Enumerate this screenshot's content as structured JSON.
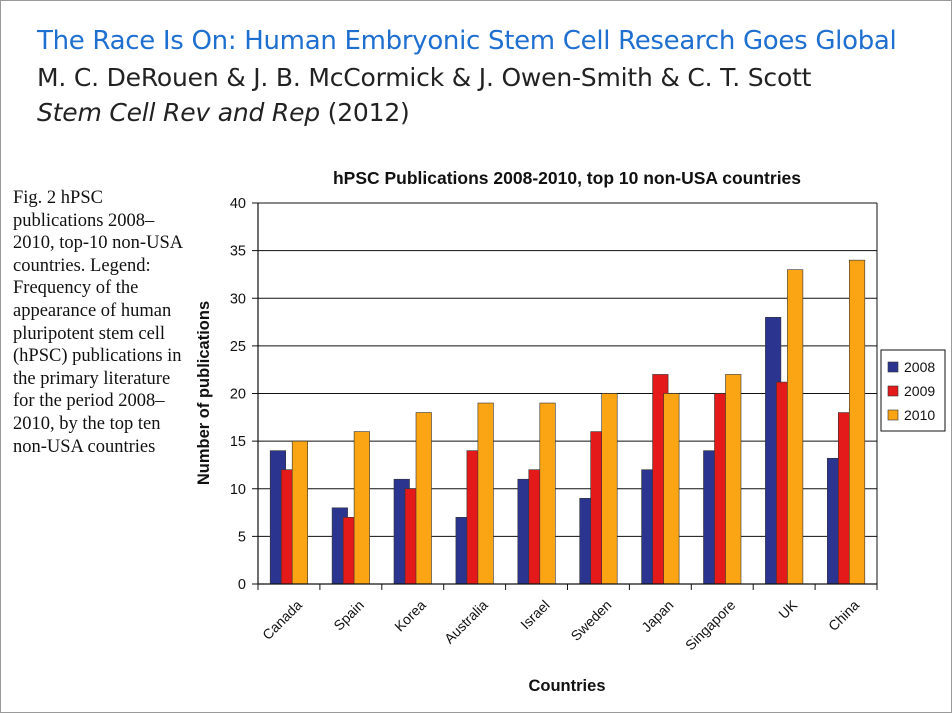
{
  "slide": {
    "title": "The Race Is On: Human Embryonic Stem Cell Research Goes Global",
    "authors": "M. C. DeRouen & J. B. McCormick & J. Owen-Smith & C. T. Scott",
    "journal": "Stem Cell Rev and Rep",
    "year": "(2012)"
  },
  "caption": "Fig. 2 hPSC publications 2008–2010, top-10 non-USA countries. Legend: Frequency of the appearance of human pluripotent stem cell (hPSC) publications in the primary literature for the period 2008–2010, by the top ten non-USA countries",
  "chart_data": {
    "type": "bar",
    "title": "hPSC Publications 2008-2010, top 10 non-USA countries",
    "xlabel": "Countries",
    "ylabel": "Number of publications",
    "ylim": [
      0,
      40
    ],
    "yticks": [
      0,
      5,
      10,
      15,
      20,
      25,
      30,
      35,
      40
    ],
    "grid": true,
    "legend_position": "right",
    "categories": [
      "Canada",
      "Spain",
      "Korea",
      "Australia",
      "Israel",
      "Sweden",
      "Japan",
      "Singapore",
      "UK",
      "China"
    ],
    "series": [
      {
        "name": "2008",
        "color": "#2b3590",
        "values": [
          14,
          8,
          11,
          7,
          11,
          9,
          12,
          14,
          28,
          13.2
        ]
      },
      {
        "name": "2009",
        "color": "#e3191a",
        "values": [
          12,
          7,
          10,
          14,
          12,
          16,
          22,
          20,
          21.2,
          18
        ]
      },
      {
        "name": "2010",
        "color": "#fba414",
        "values": [
          15,
          16,
          18,
          19,
          19,
          20,
          20,
          22,
          33,
          34
        ]
      }
    ]
  }
}
